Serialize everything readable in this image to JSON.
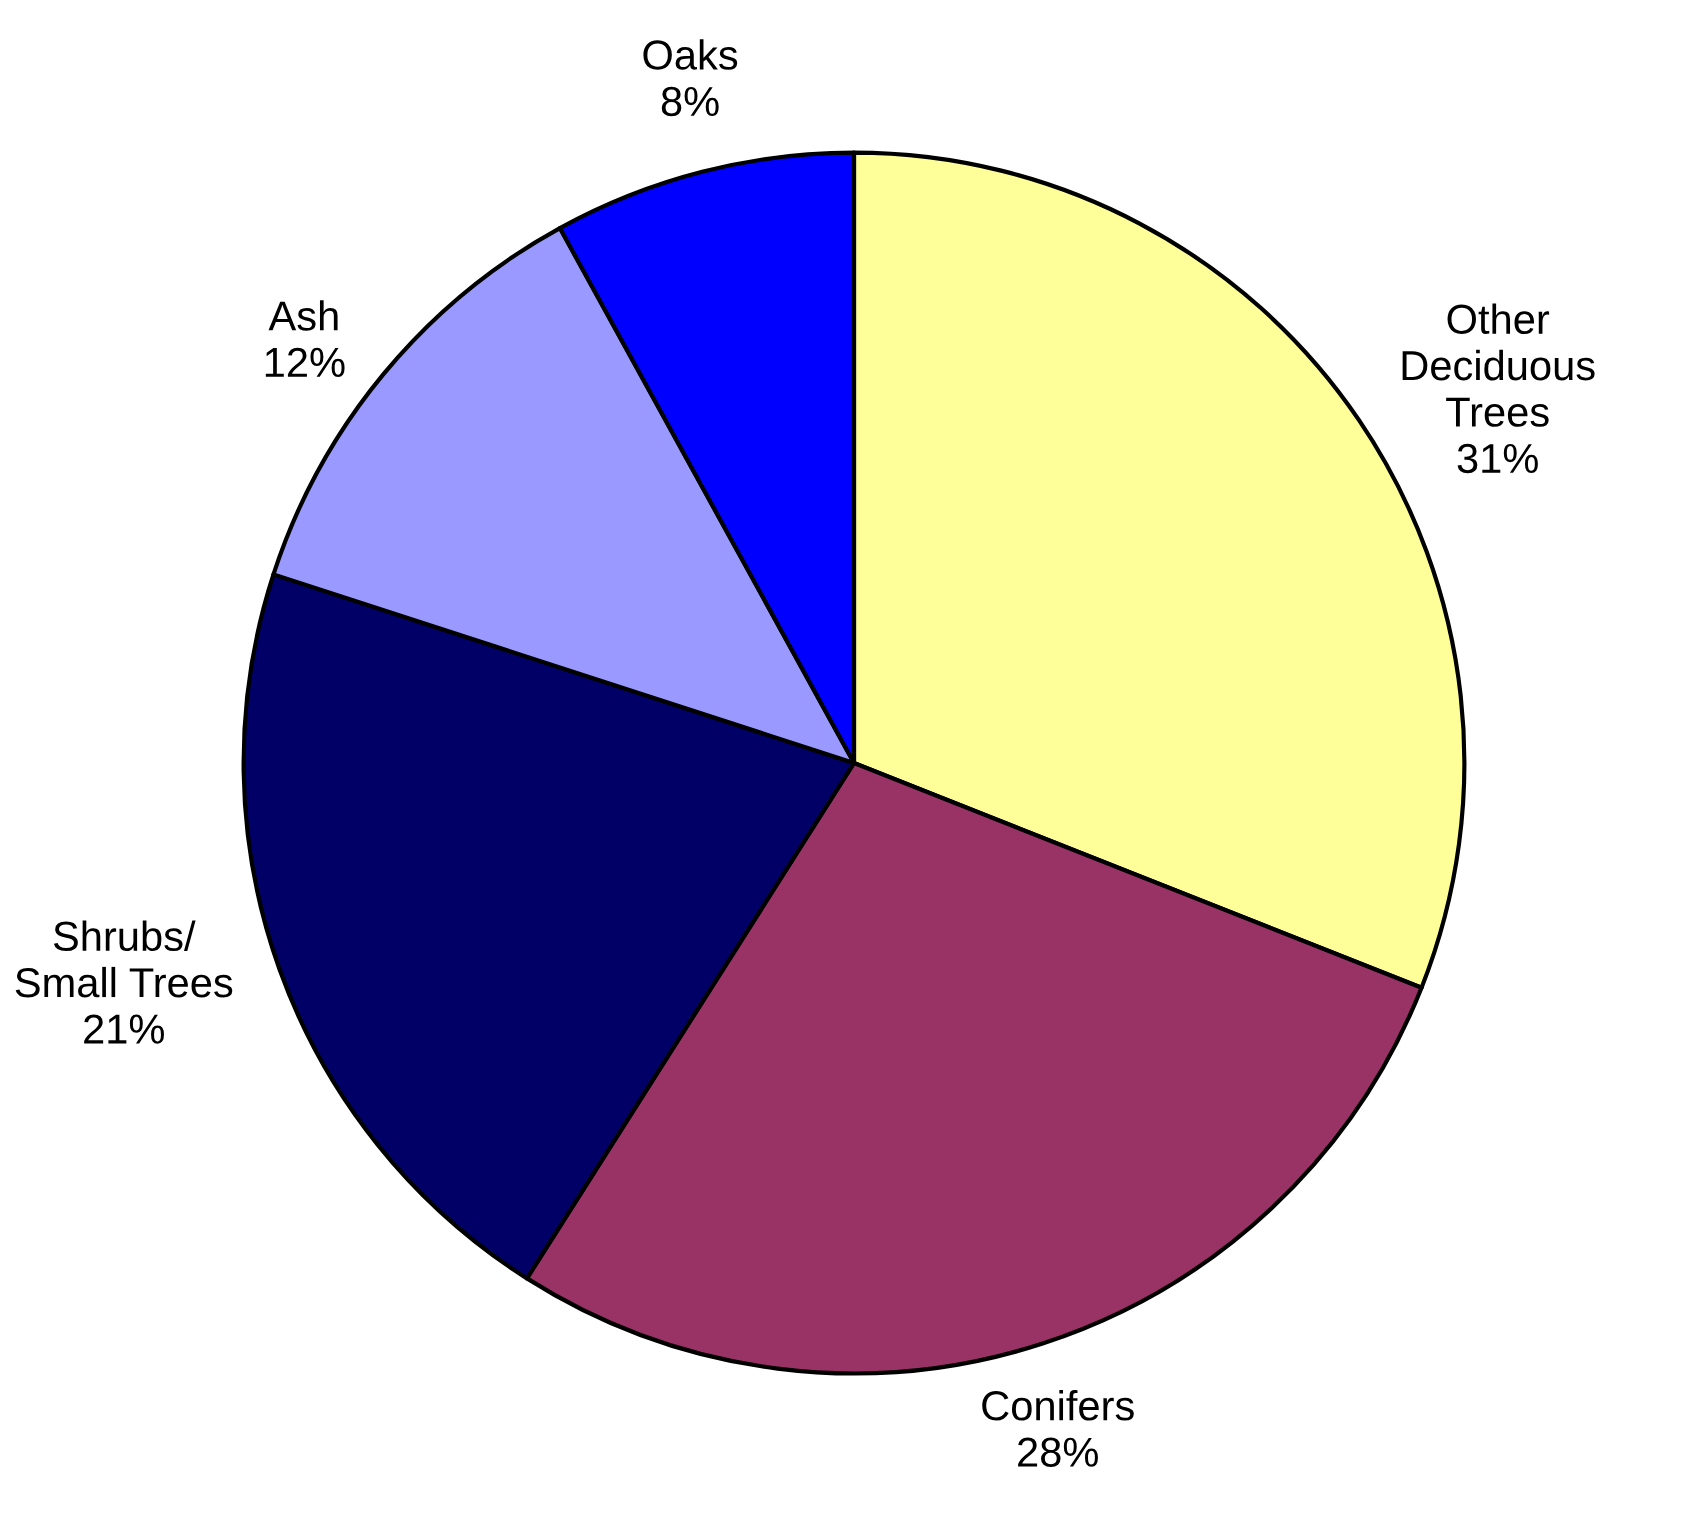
{
  "chart_data": {
    "type": "pie",
    "categories": [
      "Other\nDeciduous\nTrees",
      "Conifers",
      "Shrubs/\nSmall Trees",
      "Ash",
      "Oaks"
    ],
    "values": [
      31,
      28,
      21,
      12,
      8
    ],
    "value_labels": [
      "31%",
      "28%",
      "21%",
      "12%",
      "8%"
    ],
    "colors": [
      "#ffff99",
      "#993366",
      "#000066",
      "#9999ff",
      "#0000ff"
    ]
  }
}
